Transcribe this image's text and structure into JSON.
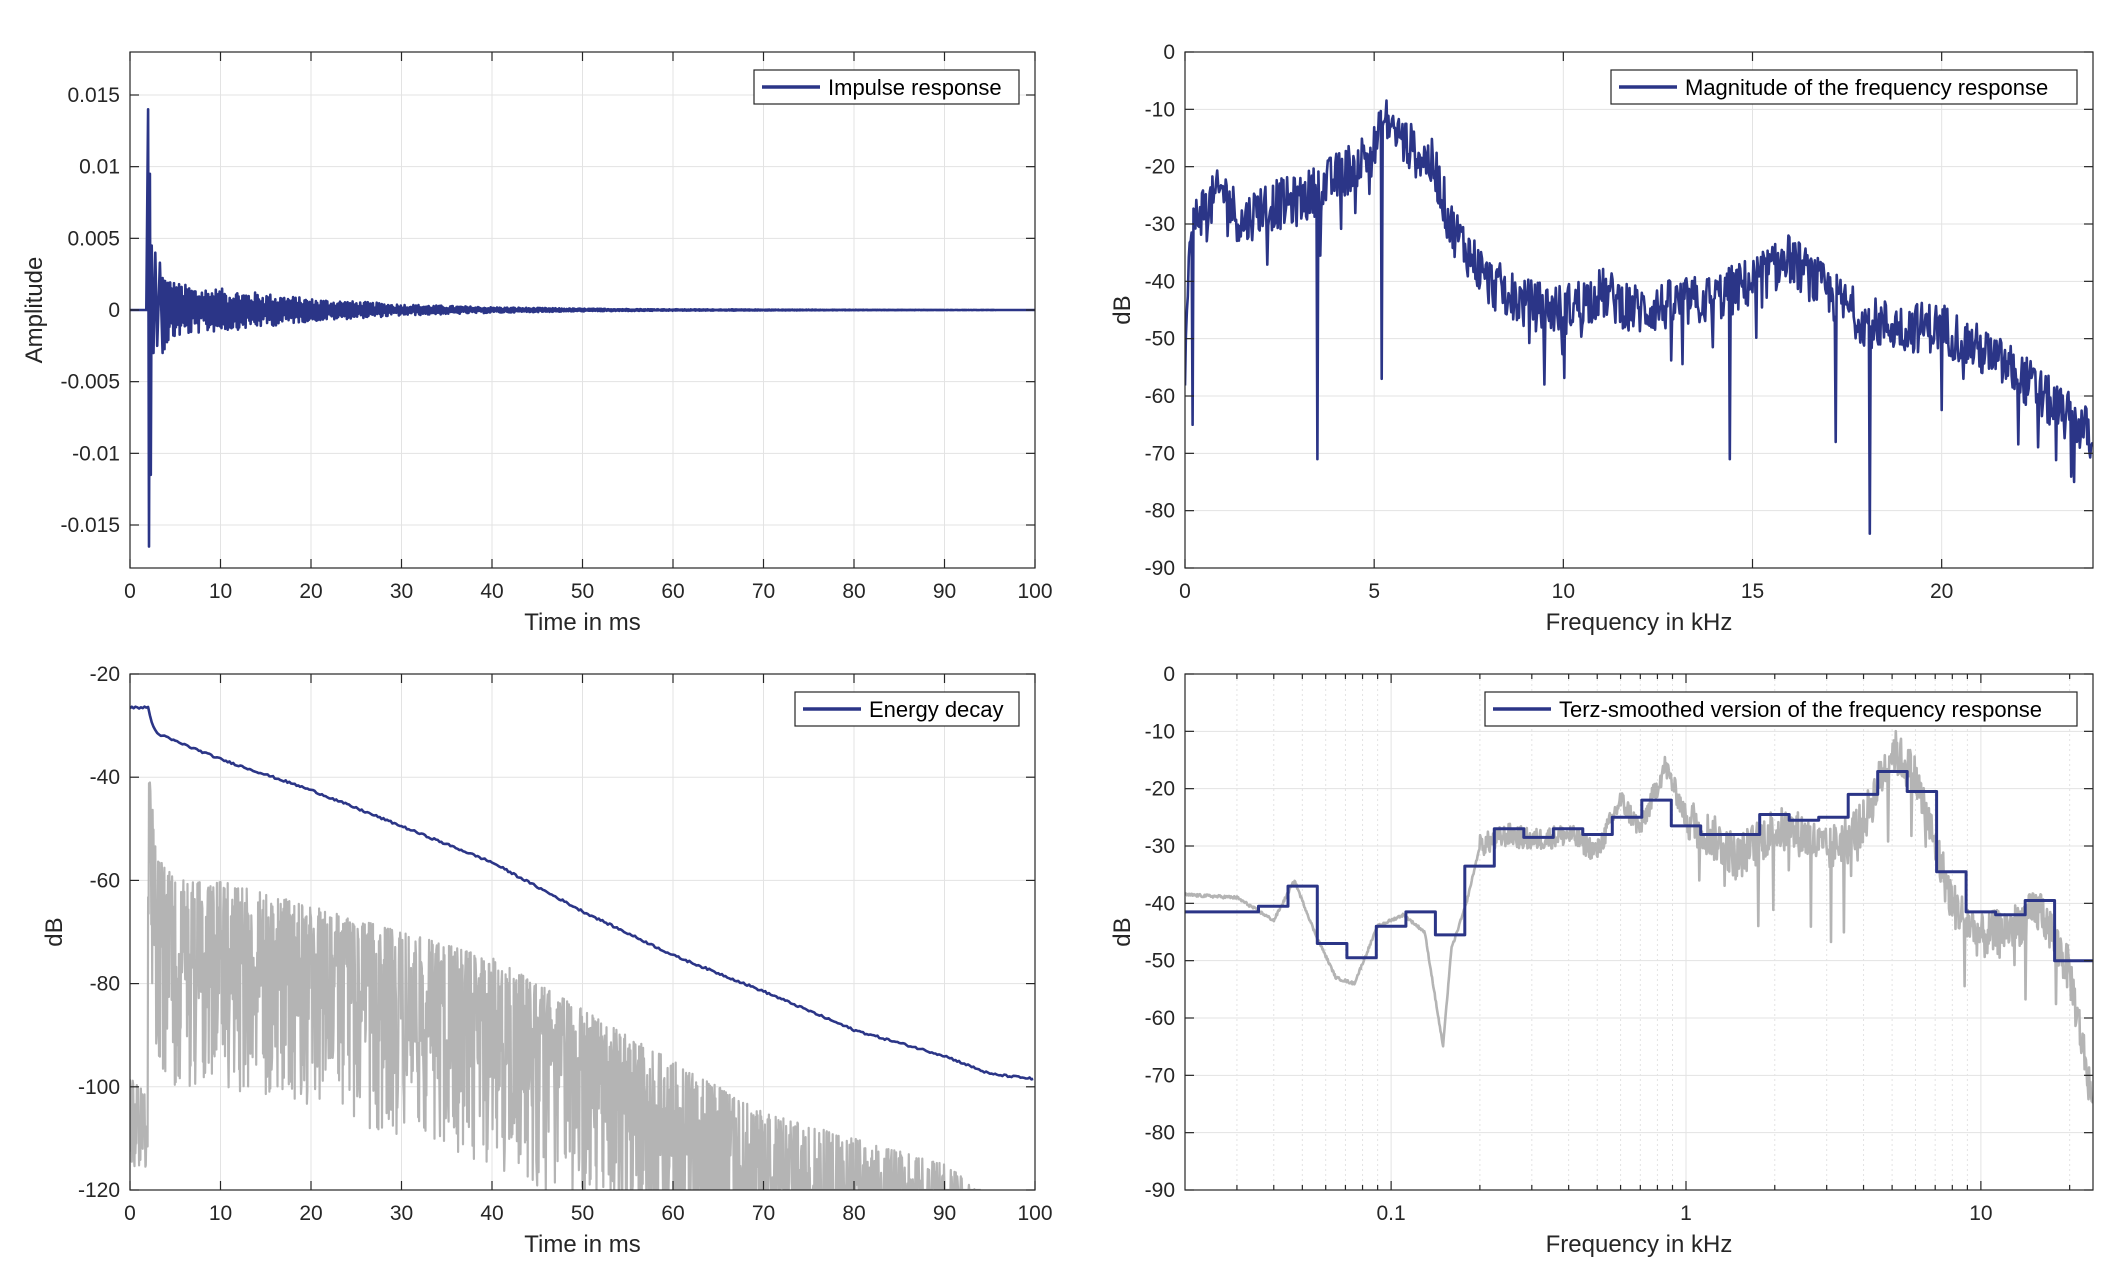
{
  "colors": {
    "series": "#2b3587",
    "gray": "#b4b4b4",
    "grid": "#e3e3e3",
    "axis": "#262626"
  },
  "chart_data": [
    {
      "type": "line",
      "title": "",
      "xlabel": "Time in ms",
      "ylabel": "Amplitude",
      "xlim": [
        0,
        100
      ],
      "ylim": [
        -0.018,
        0.018
      ],
      "x_scale": "linear",
      "xticks": [
        0,
        10,
        20,
        30,
        40,
        50,
        60,
        70,
        80,
        90,
        100
      ],
      "xtick_labels": [
        "0",
        "10",
        "20",
        "30",
        "40",
        "50",
        "60",
        "70",
        "80",
        "90",
        "100"
      ],
      "yticks": [
        -0.015,
        -0.01,
        -0.005,
        0,
        0.005,
        0.01,
        0.015
      ],
      "ytick_labels": [
        "-0.015",
        "-0.01",
        "-0.005",
        "0",
        "0.005",
        "0.01",
        "0.015"
      ],
      "grid": true,
      "legend_position": "top-right",
      "series": [
        {
          "name": "Impulse response",
          "color": "#2b3587",
          "envelope": "decaying oscillation",
          "x": [
            0,
            1.8,
            2.0,
            2.1,
            2.2,
            2.3,
            2.4,
            2.6,
            2.8,
            3.0,
            3.3,
            3.6,
            4,
            5,
            6,
            8,
            10,
            13,
            16,
            20,
            25,
            30,
            40,
            50,
            60,
            80,
            100
          ],
          "y": [
            0,
            0,
            0.014,
            -0.0165,
            0.0095,
            -0.0115,
            0.0045,
            -0.003,
            0.004,
            -0.0025,
            0.0033,
            -0.003,
            0.0025,
            -0.002,
            0.0018,
            -0.0016,
            0.0015,
            -0.0013,
            0.0011,
            -0.0008,
            0.0006,
            -0.0004,
            0.0002,
            -0.0001,
            5e-05,
            2e-05,
            0
          ]
        }
      ]
    },
    {
      "type": "line",
      "title": "",
      "xlabel": "Frequency in kHz",
      "ylabel": "dB",
      "xlim": [
        0,
        24
      ],
      "ylim": [
        -90,
        0
      ],
      "x_scale": "linear",
      "xticks": [
        0,
        5,
        10,
        15,
        20
      ],
      "xtick_labels": [
        "0",
        "5",
        "10",
        "15",
        "20"
      ],
      "yticks": [
        -90,
        -80,
        -70,
        -60,
        -50,
        -40,
        -30,
        -20,
        -10,
        0
      ],
      "ytick_labels": [
        "-90",
        "-80",
        "-70",
        "-60",
        "-50",
        "-40",
        "-30",
        "-20",
        "-10",
        "0"
      ],
      "grid": true,
      "legend_position": "top-right",
      "series": [
        {
          "name": "Magnitude of the frequency response",
          "color": "#2b3587",
          "x": [
            0,
            0.1,
            0.3,
            0.6,
            1,
            1.5,
            2,
            3,
            4,
            5,
            5.3,
            6,
            6.6,
            7,
            8,
            9,
            10,
            11,
            12,
            13,
            14,
            15,
            16,
            17,
            18,
            19,
            20,
            21,
            22,
            23,
            24
          ],
          "y": [
            -58,
            -36,
            -28,
            -27,
            -24,
            -30,
            -27,
            -26,
            -22,
            -17,
            -12,
            -17,
            -20,
            -30,
            -40,
            -44,
            -45,
            -42,
            -45,
            -44,
            -43,
            -40,
            -36,
            -42,
            -47,
            -48,
            -48,
            -52,
            -56,
            -62,
            -67
          ],
          "dips": [
            [
              0.2,
              -65
            ],
            [
              3.5,
              -71
            ],
            [
              5.2,
              -57
            ],
            [
              9.5,
              -58
            ],
            [
              14.4,
              -71
            ],
            [
              17.2,
              -68
            ],
            [
              18.1,
              -84
            ],
            [
              23.5,
              -75
            ]
          ]
        }
      ]
    },
    {
      "type": "line",
      "title": "",
      "xlabel": "Time in ms",
      "ylabel": "dB",
      "xlim": [
        0,
        100
      ],
      "ylim": [
        -120,
        -20
      ],
      "x_scale": "linear",
      "xticks": [
        0,
        10,
        20,
        30,
        40,
        50,
        60,
        70,
        80,
        90,
        100
      ],
      "xtick_labels": [
        "0",
        "10",
        "20",
        "30",
        "40",
        "50",
        "60",
        "70",
        "80",
        "90",
        "100"
      ],
      "yticks": [
        -120,
        -100,
        -80,
        -60,
        -40,
        -20
      ],
      "ytick_labels": [
        "-120",
        "-100",
        "-80",
        "-60",
        "-40",
        "-20"
      ],
      "grid": true,
      "legend_position": "top-right",
      "series": [
        {
          "name": "Energy decay",
          "color": "#2b3587",
          "x": [
            0,
            2,
            2.5,
            3,
            5,
            10,
            20,
            30,
            40,
            50,
            60,
            70,
            80,
            90,
            95,
            100
          ],
          "y": [
            -26.5,
            -26.5,
            -30,
            -31.5,
            -33,
            -36.5,
            -42.5,
            -49.5,
            -56.5,
            -66,
            -74.5,
            -81.5,
            -89,
            -94,
            -97.5,
            -98.5
          ]
        },
        {
          "color": "#b4b4b4",
          "envelope": "noisy squared impulse response",
          "x": [
            0,
            2,
            3,
            5,
            10,
            20,
            30,
            40,
            50,
            60,
            70,
            80,
            90,
            94
          ],
          "y": [
            -105,
            -35,
            -55,
            -60,
            -60,
            -65,
            -70,
            -75,
            -85,
            -95,
            -105,
            -110,
            -115,
            -120
          ]
        }
      ]
    },
    {
      "type": "line",
      "title": "",
      "xlabel": "Frequency in kHz",
      "ylabel": "dB",
      "xlim": [
        0.02,
        24
      ],
      "ylim": [
        -90,
        0
      ],
      "x_scale": "log",
      "xticks": [
        0.1,
        1,
        10
      ],
      "xtick_labels": [
        "0.1",
        "1",
        "10"
      ],
      "yticks": [
        -90,
        -80,
        -70,
        -60,
        -50,
        -40,
        -30,
        -20,
        -10,
        0
      ],
      "ytick_labels": [
        "-90",
        "-80",
        "-70",
        "-60",
        "-50",
        "-40",
        "-30",
        "-20",
        "-10",
        "0"
      ],
      "grid": true,
      "legend_position": "top-right",
      "series": [
        {
          "name": "Terz-smoothed version of the frequency response",
          "color": "#2b3587",
          "step": true,
          "x": [
            0.02,
            0.0355,
            0.0447,
            0.0562,
            0.0708,
            0.0891,
            0.1122,
            0.1413,
            0.1778,
            0.2239,
            0.2818,
            0.3548,
            0.4467,
            0.5623,
            0.7079,
            0.8913,
            1.122,
            1.413,
            1.778,
            2.239,
            2.818,
            3.548,
            4.467,
            5.623,
            7.079,
            8.913,
            11.22,
            14.13,
            17.78,
            24
          ],
          "y": [
            -41.5,
            -40.5,
            -37,
            -47,
            -49.5,
            -44,
            -41.5,
            -45.5,
            -33.5,
            -27,
            -28.5,
            -27,
            -28,
            -25,
            -22,
            -26.5,
            -28,
            -28,
            -24.5,
            -25.5,
            -25,
            -21,
            -17,
            -20.5,
            -34.5,
            -41.5,
            -42,
            -39.5,
            -50,
            -50
          ]
        },
        {
          "color": "#b4b4b4",
          "x": [
            0.02,
            0.03,
            0.04,
            0.047,
            0.055,
            0.065,
            0.075,
            0.09,
            0.11,
            0.13,
            0.15,
            0.16,
            0.18,
            0.2,
            0.25,
            0.3,
            0.4,
            0.5,
            0.6,
            0.7,
            0.85,
            1,
            1.2,
            1.5,
            2,
            2.5,
            3,
            4,
            5,
            6,
            7,
            8,
            10,
            13,
            16,
            20,
            24
          ],
          "y": [
            -38.5,
            -39,
            -43,
            -36,
            -45,
            -53,
            -54,
            -44,
            -42,
            -45,
            -65,
            -48,
            -40,
            -30,
            -28,
            -29,
            -28,
            -31,
            -22,
            -27,
            -16,
            -25,
            -28,
            -32,
            -27,
            -28,
            -31,
            -26,
            -13,
            -18,
            -30,
            -40,
            -46,
            -44,
            -41,
            -52,
            -75
          ]
        }
      ]
    }
  ]
}
